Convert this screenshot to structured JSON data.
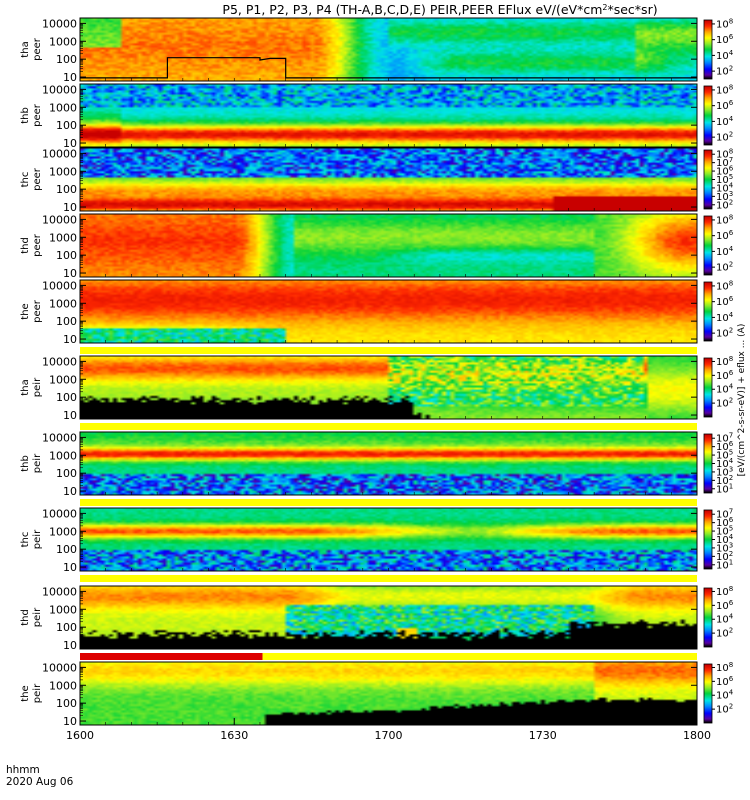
{
  "chart_data": {
    "type": "heatmap",
    "title": "P5, P1, P2, P3, P4 (TH-A,B,C,D,E) PEIR,PEER EFlux eV/(eV*cm²*sec*sr)",
    "title_parts": {
      "pre": "P5, P1, P2, P3, P4 (TH-A,B,C,D,E) PEIR,PEER EFlux eV/(eV*cm",
      "sup": "2",
      "post": "*sec*sr)"
    },
    "x_axis": {
      "label_line1": "hhmm",
      "label_line2": "2020 Aug 06",
      "tick_labels": [
        "1600",
        "1630",
        "1700",
        "1730",
        "1800"
      ],
      "tick_minutes": [
        0,
        30,
        60,
        90,
        120
      ],
      "range_minutes": [
        0,
        120
      ],
      "minor_ticks_per_major": 6
    },
    "y_axis_scale": "log",
    "y_range": [
      6,
      20000
    ],
    "y_tick_labels": [
      "10000",
      "1000",
      "100",
      "10"
    ],
    "y_tick_values": [
      10000,
      1000,
      100,
      10
    ],
    "colormap": "rainbow",
    "panels": [
      {
        "name": "tha peer",
        "line1": "tha",
        "line2": "peer",
        "species": "electron",
        "style": "hot_early",
        "trace": true,
        "colorbar": {
          "ticks": [
            "10",
            "10",
            "10",
            "10"
          ],
          "exps": [
            "8",
            "6",
            "4",
            "2"
          ],
          "log_min": 1,
          "log_max": 8.5
        }
      },
      {
        "name": "thb peer",
        "line1": "thb",
        "line2": "peer",
        "species": "electron",
        "style": "banded_low",
        "colorbar": {
          "ticks": [
            "10",
            "10",
            "10",
            "10"
          ],
          "exps": [
            "8",
            "6",
            "4",
            "2"
          ],
          "log_min": 1,
          "log_max": 8.5
        }
      },
      {
        "name": "thc peer",
        "line1": "thc",
        "line2": "peer",
        "species": "electron",
        "style": "banded_lowest",
        "colorbar": {
          "ticks": [
            "10",
            "10",
            "10",
            "10",
            "10",
            "10",
            "10"
          ],
          "exps": [
            "8",
            "7",
            "6",
            "5",
            "4",
            "3",
            "2"
          ],
          "log_min": 1.5,
          "log_max": 8.5
        }
      },
      {
        "name": "thd peer",
        "line1": "thd",
        "line2": "peer",
        "species": "electron",
        "style": "hot_mid",
        "colorbar": {
          "ticks": [
            "10",
            "10",
            "10",
            "10"
          ],
          "exps": [
            "8",
            "6",
            "4",
            "2"
          ],
          "log_min": 1,
          "log_max": 8.5
        }
      },
      {
        "name": "the peer",
        "line1": "the",
        "line2": "peer",
        "species": "electron",
        "style": "hot_all",
        "colorbar": {
          "ticks": [
            "10",
            "10",
            "10",
            "10"
          ],
          "exps": [
            "8",
            "6",
            "4",
            "2"
          ],
          "log_min": 1,
          "log_max": 8.5
        }
      },
      {
        "name": "tha peir",
        "line1": "tha",
        "line2": "peir",
        "species": "ion",
        "style": "ion_a",
        "colorbar": {
          "ticks": [
            "10",
            "10",
            "10",
            "10"
          ],
          "exps": [
            "8",
            "6",
            "4",
            "2"
          ],
          "log_min": 0,
          "log_max": 8.5
        }
      },
      {
        "name": "thb peir",
        "line1": "thb",
        "line2": "peir",
        "species": "ion",
        "style": "ion_band",
        "colorbar": {
          "ticks": [
            "10",
            "10",
            "10",
            "10",
            "10",
            "10",
            "10"
          ],
          "exps": [
            "7",
            "6",
            "5",
            "4",
            "3",
            "2",
            "1"
          ],
          "log_min": 0.5,
          "log_max": 7.5
        }
      },
      {
        "name": "thc peir",
        "line1": "thc",
        "line2": "peir",
        "species": "ion",
        "style": "ion_band_c",
        "colorbar": {
          "ticks": [
            "10",
            "10",
            "10",
            "10",
            "10",
            "10",
            "10"
          ],
          "exps": [
            "7",
            "6",
            "5",
            "4",
            "3",
            "2",
            "1"
          ],
          "log_min": 0.5,
          "log_max": 7.5
        }
      },
      {
        "name": "thd peir",
        "line1": "thd",
        "line2": "peir",
        "species": "ion",
        "style": "ion_d",
        "colorbar": {
          "ticks": [
            "10",
            "10",
            "10",
            "10"
          ],
          "exps": [
            "8",
            "6",
            "4",
            "2"
          ],
          "log_min": 0,
          "log_max": 8.5
        }
      },
      {
        "name": "the peir",
        "line1": "the",
        "line2": "peir",
        "species": "ion",
        "style": "ion_e",
        "colorbar": {
          "ticks": [
            "10",
            "10",
            "10",
            "10"
          ],
          "exps": [
            "8",
            "6",
            "4",
            "2"
          ],
          "log_min": 0,
          "log_max": 8.5
        }
      }
    ],
    "status_bars": [
      {
        "after_panel": 4,
        "segments": [
          {
            "x0": 0,
            "x1": 120,
            "color": "#ffff00"
          }
        ]
      },
      {
        "after_panel": 5,
        "segments": [
          {
            "x0": 0,
            "x1": 120,
            "color": "#ffff00"
          }
        ]
      },
      {
        "after_panel": 6,
        "segments": [
          {
            "x0": 0,
            "x1": 120,
            "color": "#ffff00"
          }
        ]
      },
      {
        "after_panel": 7,
        "segments": [
          {
            "x0": 0,
            "x1": 120,
            "color": "#ffff00"
          }
        ]
      },
      {
        "after_panel": 8,
        "segments": [
          {
            "x0": 0,
            "x1": 35.5,
            "color": "#dd0000"
          },
          {
            "x0": 35.5,
            "x1": 120,
            "color": "#ffff00"
          }
        ]
      }
    ],
    "colorbar_label": "[eV/(cm^2-s-sr-eV)] + eflux ... (A)"
  }
}
